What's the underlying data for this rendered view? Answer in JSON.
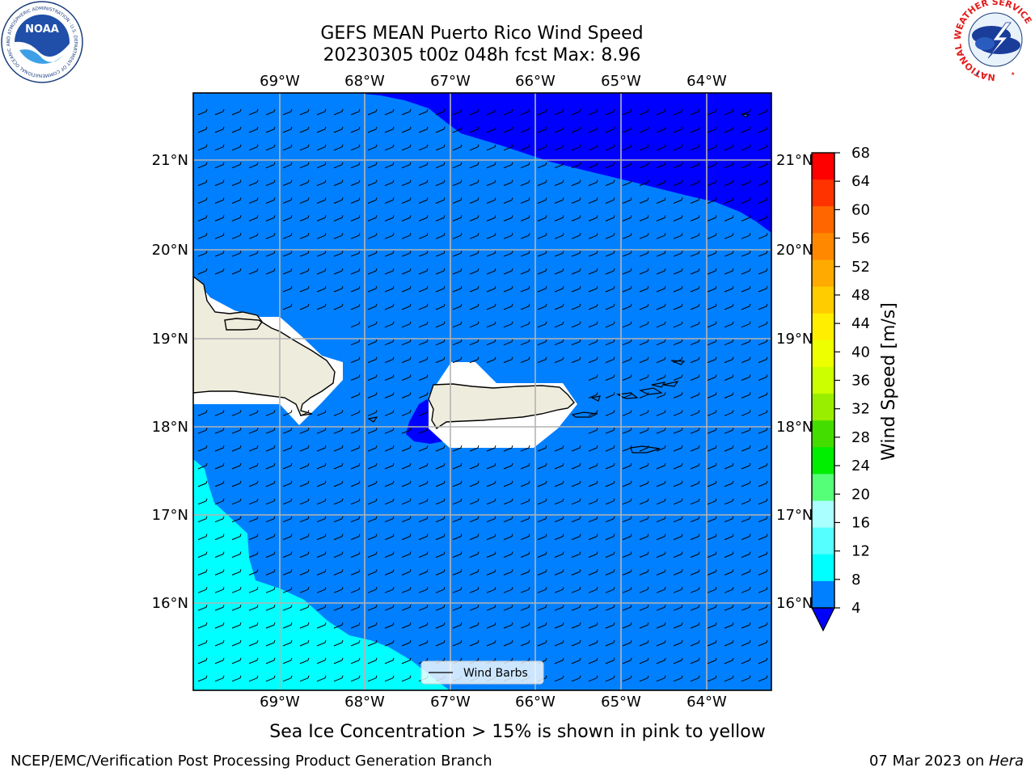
{
  "header": {
    "title_line1": "GEFS MEAN Puerto Rico Wind Speed",
    "title_line2": "20230305 t00z 048h fcst   Max: 8.96"
  },
  "logos": {
    "noaa": {
      "text": "NOAA",
      "ring_text": "NATIONAL OCEANIC AND ATMOSPHERIC ADMINISTRATION · U.S. DEPARTMENT OF COMMERCE"
    },
    "nws": {
      "ring_text": "NATIONAL WEATHER SERVICE"
    }
  },
  "map": {
    "lon_labels": [
      "69°W",
      "68°W",
      "67°W",
      "66°W",
      "65°W",
      "64°W"
    ],
    "lat_labels": [
      "21°N",
      "20°N",
      "19°N",
      "18°N",
      "17°N",
      "16°N"
    ],
    "legend_label": "Wind Barbs",
    "colors": {
      "speed_4_8": "#0080ff",
      "speed_below_4": "#0000ff",
      "speed_8_12": "#00ffff",
      "land": "#eeecdc",
      "masked": "#ffffff",
      "grid": "#b4b4b4"
    }
  },
  "colorbar": {
    "label": "Wind Speed [m/s]",
    "ticks": [
      "68",
      "64",
      "60",
      "56",
      "52",
      "48",
      "44",
      "40",
      "36",
      "32",
      "28",
      "24",
      "20",
      "16",
      "12",
      "8",
      "4"
    ],
    "colors": [
      "#ff0000",
      "#ff3300",
      "#ff6600",
      "#ff8800",
      "#ffaa00",
      "#ffcc00",
      "#ffee00",
      "#eeff00",
      "#ccff00",
      "#99ee00",
      "#44dd00",
      "#00ee00",
      "#55ff77",
      "#aaffff",
      "#55ffff",
      "#00ffff",
      "#0080ff"
    ],
    "extend_color": "#0000ff"
  },
  "caption": "Sea Ice Concentration > 15% is shown in pink to yellow",
  "footer": {
    "left": "NCEP/EMC/Verification Post Processing Product Generation Branch",
    "right_prefix": "07 Mar 2023 on ",
    "right_machine": "Hera"
  }
}
